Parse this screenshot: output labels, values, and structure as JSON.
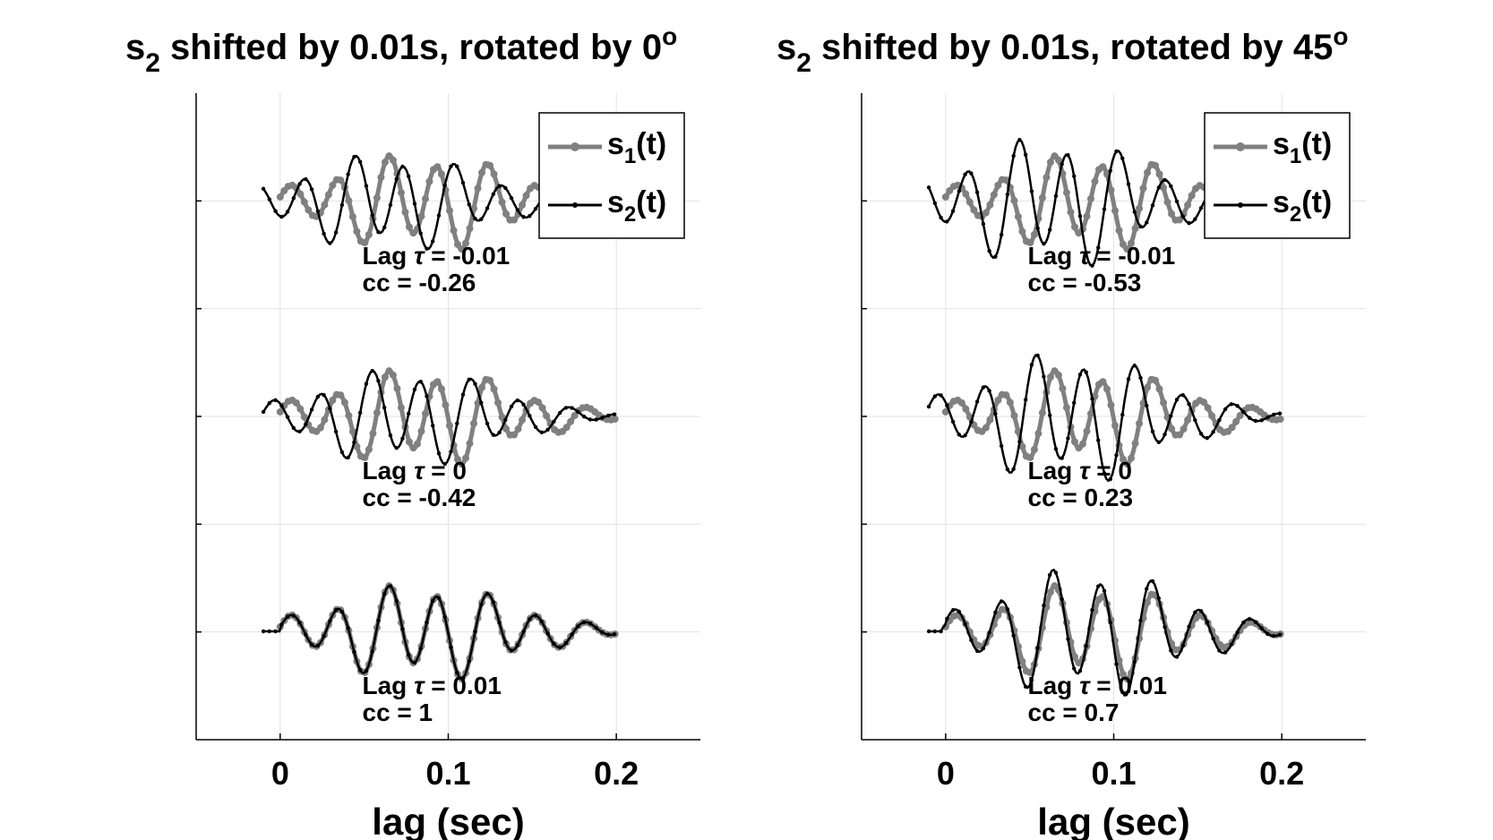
{
  "chart_data": [
    {
      "type": "line",
      "title_main": "s",
      "title_sub": "2",
      "title_rest": " shifted by 0.01s, rotated by 0",
      "title_sup": "o",
      "xlabel": "lag (sec)",
      "xlim": [
        -0.05,
        0.25
      ],
      "xticks": [
        0,
        0.1,
        0.2
      ],
      "xtick_labels": [
        "0",
        "0.1",
        "0.2"
      ],
      "grid": true,
      "legend_position": "top-right",
      "legend": [
        {
          "base": "s",
          "sub": "1",
          "tail": "(t)",
          "color": "#808080"
        },
        {
          "base": "s",
          "sub": "2",
          "tail": "(t)",
          "color": "#000000"
        }
      ],
      "panels": [
        {
          "lag_label": "Lag ",
          "tau": "τ",
          "lag_value": " = -0.01",
          "cc_label": "cc = -0.26",
          "s2_start": 0.01,
          "s2_shift": -0.01,
          "s2_rot": 0
        },
        {
          "lag_label": "Lag ",
          "tau": "τ",
          "lag_value": " = 0",
          "cc_label": "cc = -0.42",
          "s2_start": -0.0,
          "s2_shift": 0.0,
          "s2_rot": 0
        },
        {
          "lag_label": "Lag ",
          "tau": "τ",
          "lag_value": " = 0.01",
          "cc_label": "cc = 1",
          "s2_start": -0.01,
          "s2_shift": 0.01,
          "s2_rot": 0
        }
      ],
      "series": [
        {
          "name": "s1(t)",
          "color": "#808080",
          "x_range": [
            0.0,
            0.2
          ]
        },
        {
          "name": "s2(t)",
          "color": "#000000",
          "x_range": [
            -0.01,
            0.19
          ]
        }
      ]
    },
    {
      "type": "line",
      "title_main": "s",
      "title_sub": "2",
      "title_rest": " shifted by 0.01s, rotated by 45",
      "title_sup": "o",
      "xlabel": "lag (sec)",
      "xlim": [
        -0.05,
        0.25
      ],
      "xticks": [
        0,
        0.1,
        0.2
      ],
      "xtick_labels": [
        "0",
        "0.1",
        "0.2"
      ],
      "grid": true,
      "legend_position": "top-right",
      "legend": [
        {
          "base": "s",
          "sub": "1",
          "tail": "(t)",
          "color": "#808080"
        },
        {
          "base": "s",
          "sub": "2",
          "tail": "(t)",
          "color": "#000000"
        }
      ],
      "panels": [
        {
          "lag_label": "Lag ",
          "tau": "τ",
          "lag_value": " = -0.01",
          "cc_label": "cc = -0.53",
          "s2_start": 0.01,
          "s2_shift": -0.01,
          "s2_rot": 45
        },
        {
          "lag_label": "Lag ",
          "tau": "τ",
          "lag_value": " = 0",
          "cc_label": "cc = 0.23",
          "s2_start": -0.0,
          "s2_shift": 0.0,
          "s2_rot": 45
        },
        {
          "lag_label": "Lag ",
          "tau": "τ",
          "lag_value": " = 0.01",
          "cc_label": "cc = 0.7",
          "s2_start": -0.01,
          "s2_shift": 0.01,
          "s2_rot": 45
        }
      ],
      "series": [
        {
          "name": "s1(t)",
          "color": "#808080",
          "x_range": [
            0.0,
            0.2
          ]
        },
        {
          "name": "s2(t)",
          "color": "#000000",
          "x_range": [
            -0.01,
            0.19
          ]
        }
      ]
    }
  ]
}
